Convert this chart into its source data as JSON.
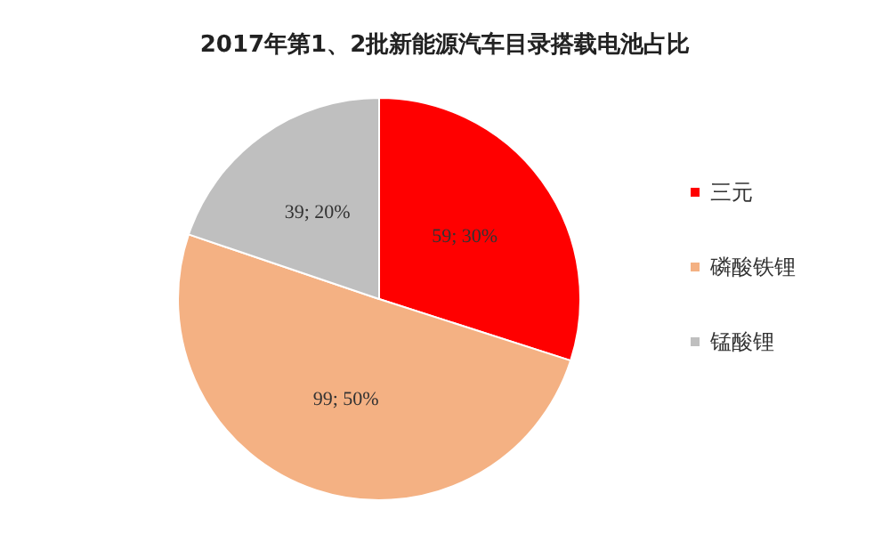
{
  "chart_data": {
    "type": "pie",
    "title": "2017年第1、2批新能源汽车目录搭载电池占比",
    "categories": [
      "三元",
      "磷酸铁锂",
      "锰酸锂"
    ],
    "values": [
      59,
      99,
      39
    ],
    "value_labels": [
      "59; 30%",
      "99; 50%",
      "39; 20%"
    ],
    "colors": [
      "#ff0000",
      "#f4b183",
      "#bfbfbf"
    ],
    "legend": "right"
  }
}
